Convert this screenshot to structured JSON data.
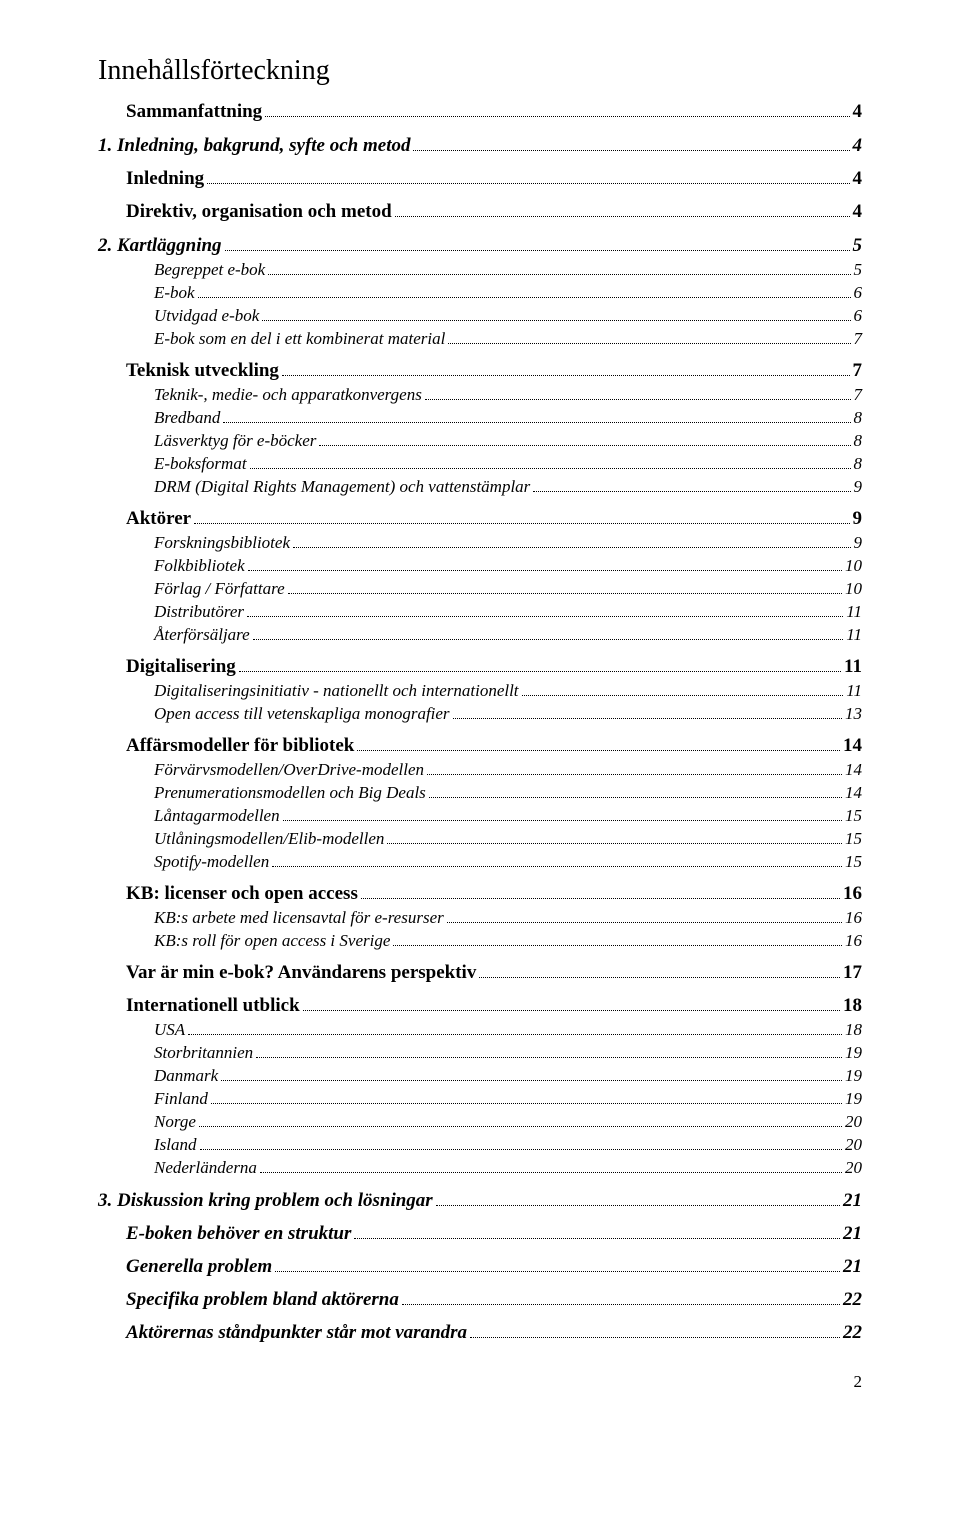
{
  "doc": {
    "title": "Innehållsförteckning",
    "page_number": "2",
    "typography": {
      "title_fontsize": 28,
      "heading_fontsize": 19,
      "subitem_fontsize": 17,
      "font_family": "Times New Roman"
    },
    "colors": {
      "text": "#000000",
      "background": "#ffffff"
    },
    "entries": [
      {
        "label": "Sammanfattning",
        "page": "4",
        "level": "heading",
        "style": "bold"
      },
      {
        "label": "1. Inledning, bakgrund, syfte och metod",
        "page": "4",
        "level": "chapter",
        "style": "bolditalic"
      },
      {
        "label": "Inledning",
        "page": "4",
        "level": "heading",
        "style": "bold"
      },
      {
        "label": "Direktiv, organisation och metod",
        "page": "4",
        "level": "heading",
        "style": "bold"
      },
      {
        "label": "2. Kartläggning",
        "page": "5",
        "level": "chapter",
        "style": "bolditalic"
      },
      {
        "label": "Begreppet e-bok",
        "page": "5",
        "level": "subitalic",
        "style": "italic"
      },
      {
        "label": "E-bok",
        "page": "6",
        "level": "subitalic",
        "style": "italic"
      },
      {
        "label": "Utvidgad e-bok",
        "page": "6",
        "level": "subitalic",
        "style": "italic"
      },
      {
        "label": "E-bok som en del i ett kombinerat material",
        "page": "7",
        "level": "subitalic",
        "style": "italic"
      },
      {
        "label": "Teknisk utveckling",
        "page": "7",
        "level": "heading",
        "style": "bold"
      },
      {
        "label": "Teknik-, medie- och apparatkonvergens",
        "page": "7",
        "level": "subitalic",
        "style": "italic"
      },
      {
        "label": "Bredband",
        "page": "8",
        "level": "subitalic",
        "style": "italic"
      },
      {
        "label": "Läsverktyg för e-böcker",
        "page": "8",
        "level": "subitalic",
        "style": "italic"
      },
      {
        "label": "E-boksformat",
        "page": "8",
        "level": "subitalic",
        "style": "italic"
      },
      {
        "label": "DRM (Digital Rights Management) och vattenstämplar",
        "page": "9",
        "level": "subitalic",
        "style": "italic"
      },
      {
        "label": "Aktörer",
        "page": "9",
        "level": "heading",
        "style": "bold"
      },
      {
        "label": "Forskningsbibliotek",
        "page": "9",
        "level": "subitalic",
        "style": "italic"
      },
      {
        "label": "Folkbibliotek",
        "page": "10",
        "level": "subitalic",
        "style": "italic"
      },
      {
        "label": "Förlag / Författare",
        "page": "10",
        "level": "subitalic",
        "style": "italic"
      },
      {
        "label": "Distributörer",
        "page": "11",
        "level": "subitalic",
        "style": "italic"
      },
      {
        "label": "Återförsäljare",
        "page": "11",
        "level": "subitalic",
        "style": "italic"
      },
      {
        "label": "Digitalisering",
        "page": "11",
        "level": "heading",
        "style": "bold"
      },
      {
        "label": "Digitaliseringsinitiativ - nationellt och internationellt",
        "page": "11",
        "level": "subitalic",
        "style": "italic"
      },
      {
        "label": "Open access till vetenskapliga monografier",
        "page": "13",
        "level": "subitalic",
        "style": "italic"
      },
      {
        "label": "Affärsmodeller för bibliotek",
        "page": "14",
        "level": "heading",
        "style": "bold"
      },
      {
        "label": "Förvärvsmodellen/OverDrive-modellen",
        "page": "14",
        "level": "subitalic",
        "style": "italic"
      },
      {
        "label": "Prenumerationsmodellen och Big Deals",
        "page": "14",
        "level": "subitalic",
        "style": "italic"
      },
      {
        "label": "Låntagarmodellen",
        "page": "15",
        "level": "subitalic",
        "style": "italic"
      },
      {
        "label": "Utlåningsmodellen/Elib-modellen",
        "page": "15",
        "level": "subitalic",
        "style": "italic"
      },
      {
        "label": "Spotify-modellen",
        "page": "15",
        "level": "subitalic",
        "style": "italic"
      },
      {
        "label": "KB: licenser och open access",
        "page": "16",
        "level": "heading",
        "style": "bold"
      },
      {
        "label": "KB:s arbete med licensavtal för e-resurser",
        "page": "16",
        "level": "subitalic",
        "style": "italic"
      },
      {
        "label": "KB:s roll för open access i Sverige",
        "page": "16",
        "level": "subitalic",
        "style": "italic"
      },
      {
        "label": "Var är min e-bok? Användarens perspektiv",
        "page": "17",
        "level": "heading",
        "style": "bold"
      },
      {
        "label": "Internationell utblick",
        "page": "18",
        "level": "heading",
        "style": "bold"
      },
      {
        "label": "USA",
        "page": "18",
        "level": "subitalic",
        "style": "italic"
      },
      {
        "label": "Storbritannien",
        "page": "19",
        "level": "subitalic",
        "style": "italic"
      },
      {
        "label": "Danmark",
        "page": "19",
        "level": "subitalic",
        "style": "italic"
      },
      {
        "label": "Finland",
        "page": "19",
        "level": "subitalic",
        "style": "italic"
      },
      {
        "label": "Norge",
        "page": "20",
        "level": "subitalic",
        "style": "italic"
      },
      {
        "label": "Island",
        "page": "20",
        "level": "subitalic",
        "style": "italic"
      },
      {
        "label": "Nederländerna",
        "page": "20",
        "level": "subitalic",
        "style": "italic"
      },
      {
        "label": "3. Diskussion kring problem och lösningar",
        "page": "21",
        "level": "chapter",
        "style": "bolditalic"
      },
      {
        "label": "E-boken behöver en struktur",
        "page": "21",
        "level": "heading",
        "style": "bolditalic"
      },
      {
        "label": "Generella problem",
        "page": "21",
        "level": "heading",
        "style": "bolditalic"
      },
      {
        "label": "Specifika problem bland aktörerna",
        "page": "22",
        "level": "heading",
        "style": "bolditalic"
      },
      {
        "label": "Aktörernas ståndpunkter står mot varandra",
        "page": "22",
        "level": "heading",
        "style": "bolditalic"
      }
    ]
  }
}
